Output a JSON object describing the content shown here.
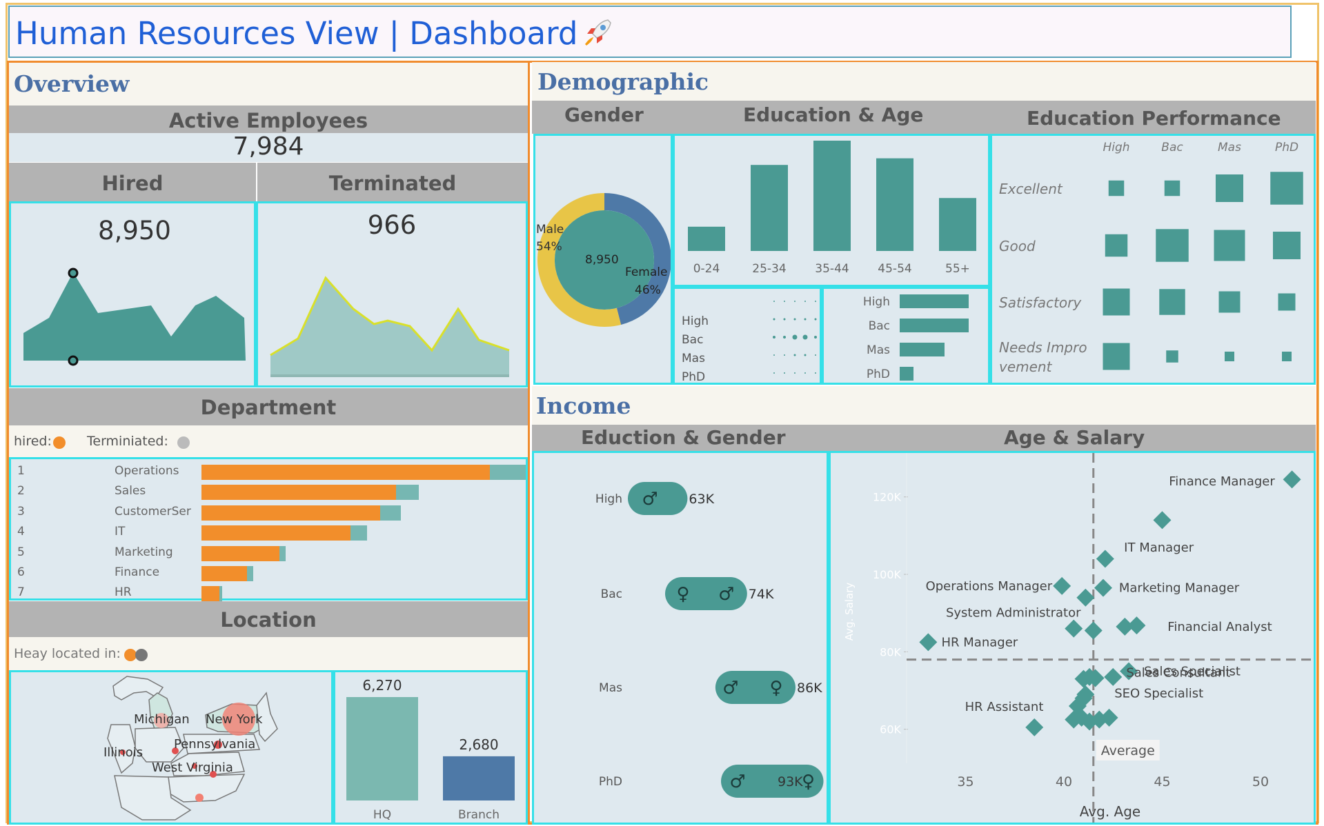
{
  "header": {
    "title": "Human Resources View  |  Dashboard",
    "icon": "rocket-icon"
  },
  "overview": {
    "heading": "Overview",
    "active_label": "Active Employees",
    "active_value": "7,984",
    "hired_label": "Hired",
    "hired_value": "8,950",
    "terminated_label": "Terminated",
    "terminated_value": "966"
  },
  "department": {
    "heading": "Department",
    "legend_hired": "hired:",
    "legend_terminated": "Terminiated:",
    "rows": [
      {
        "rank": "1",
        "name": "Operations",
        "hired": 0.89,
        "terminated": 0.11
      },
      {
        "rank": "2",
        "name": "Sales",
        "hired": 0.6,
        "terminated": 0.07
      },
      {
        "rank": "3",
        "name": "CustomerSer",
        "hired": 0.55,
        "terminated": 0.065
      },
      {
        "rank": "4",
        "name": "IT",
        "hired": 0.46,
        "terminated": 0.05
      },
      {
        "rank": "5",
        "name": "Marketing",
        "hired": 0.24,
        "terminated": 0.02
      },
      {
        "rank": "6",
        "name": "Finance",
        "hired": 0.14,
        "terminated": 0.02
      },
      {
        "rank": "7",
        "name": "HR",
        "hired": 0.055,
        "terminated": 0.008
      }
    ]
  },
  "location": {
    "heading": "Location",
    "legend": "Heay located  in:",
    "states": [
      "Michigan",
      "New York",
      "Illinois",
      "Pennsylvania",
      "West Virginia"
    ],
    "bars": [
      {
        "label": "HQ",
        "value": 6270,
        "value_text": "6,270",
        "color": "#7bb8b0"
      },
      {
        "label": "Branch",
        "value": 2680,
        "value_text": "2,680",
        "color": "#4e79a7"
      }
    ]
  },
  "demographic": {
    "heading": "Demographic",
    "gender_label": "Gender",
    "edu_age_label": "Education & Age",
    "edu_perf_label": "Education Performance",
    "donut": {
      "center": "8,950",
      "male_label": "Male",
      "male_pct": "54%",
      "female_label": "Female",
      "female_pct": "46%",
      "male_share": 0.54
    },
    "age_bars": [
      {
        "label": "0-24",
        "value": 0.22
      },
      {
        "label": "25-34",
        "value": 0.78
      },
      {
        "label": "35-44",
        "value": 1.0
      },
      {
        "label": "45-54",
        "value": 0.84
      },
      {
        "label": "55+",
        "value": 0.48
      }
    ],
    "edu_dots_labels": [
      "High",
      "Bac",
      "Mas",
      "PhD"
    ],
    "edu_bars": [
      {
        "label": "High",
        "value": 1.0
      },
      {
        "label": "Bac",
        "value": 1.0
      },
      {
        "label": "Mas",
        "value": 0.65
      },
      {
        "label": "PhD",
        "value": 0.2
      }
    ],
    "perf_cols": [
      "High",
      "Bac",
      "Mas",
      "PhD"
    ],
    "perf_rows": [
      {
        "label": "Excellent",
        "sizes": [
          0.45,
          0.45,
          0.8,
          0.95
        ]
      },
      {
        "label": "Good",
        "sizes": [
          0.65,
          0.95,
          0.9,
          0.8
        ]
      },
      {
        "label": "Satisfactory",
        "sizes": [
          0.78,
          0.75,
          0.62,
          0.5
        ]
      },
      {
        "label": "Needs Improvement",
        "label_line1": "Needs Impro",
        "label_line2": "vement",
        "sizes": [
          0.78,
          0.35,
          0.28,
          0.28
        ]
      }
    ]
  },
  "income": {
    "heading": "Income",
    "edu_gender_label": "Eduction & Gender",
    "age_salary_label": "Age & Salary",
    "edu_gender_rows": [
      {
        "label": "High",
        "value": "63K",
        "start": 0.0,
        "end": 0.12
      },
      {
        "label": "Bac",
        "value": "74K",
        "start": 0.2,
        "end": 0.44
      },
      {
        "label": "Mas",
        "value": "86K",
        "start": 0.47,
        "end": 0.7
      },
      {
        "label": "PhD",
        "value": "93K",
        "start": 0.5,
        "end": 0.85
      }
    ],
    "scatter": {
      "xlabel": "Avg. Age",
      "ylabel": "Avg. Salary",
      "xticks": [
        "35",
        "40",
        "45",
        "50"
      ],
      "yticks": [
        "60K",
        "80K",
        "100K",
        "120K"
      ],
      "average_label": "Average",
      "avg_age": 41.5,
      "avg_salary": 78000,
      "labels": [
        {
          "text": "Finance Manager",
          "x": 51.5,
          "y": 124000
        },
        {
          "text": "IT Manager",
          "x": 44.9,
          "y": 113000
        },
        {
          "text": "Operations Manager",
          "x": 39.9,
          "y": 97000
        },
        {
          "text": "Marketing Manager",
          "x": 42.1,
          "y": 96500
        },
        {
          "text": "System Administrator",
          "x": 41.0,
          "y": 93000
        },
        {
          "text": "Financial Analyst",
          "x": 43.8,
          "y": 86500
        },
        {
          "text": "HR Manager",
          "x": 33.0,
          "y": 82500
        },
        {
          "text": "Sales Consultant",
          "x": 43.1,
          "y": 80000
        },
        {
          "text": "Sales Specialist",
          "x": 43.3,
          "y": 75000
        },
        {
          "text": "SEO Specialist",
          "x": 42.5,
          "y": 69500
        },
        {
          "text": "HR Assistant",
          "x": 38.4,
          "y": 60500
        }
      ],
      "points": [
        [
          51.6,
          124500
        ],
        [
          45.0,
          114000
        ],
        [
          42.1,
          104000
        ],
        [
          39.9,
          97000
        ],
        [
          42.0,
          96500
        ],
        [
          41.1,
          94000
        ],
        [
          40.5,
          86000
        ],
        [
          41.5,
          85500
        ],
        [
          43.1,
          86500
        ],
        [
          43.7,
          86800
        ],
        [
          33.1,
          82500
        ],
        [
          41.0,
          73000
        ],
        [
          41.3,
          73500
        ],
        [
          41.6,
          73200
        ],
        [
          42.5,
          73500
        ],
        [
          43.3,
          75000
        ],
        [
          41.1,
          69000
        ],
        [
          41.0,
          68000
        ],
        [
          40.7,
          66000
        ],
        [
          40.5,
          62500
        ],
        [
          40.9,
          63000
        ],
        [
          41.3,
          62000
        ],
        [
          41.8,
          62500
        ],
        [
          42.3,
          63000
        ],
        [
          38.5,
          60500
        ]
      ]
    }
  },
  "colors": {
    "teal": "#4a9a93",
    "light_teal": "#9fc9c6",
    "orange": "#f28e2b",
    "yellow": "#e8c547",
    "blue": "#4e79a7",
    "band": "#b3b3b3",
    "panel": "#dfe9ef",
    "cyan_border": "#35e0e8"
  }
}
